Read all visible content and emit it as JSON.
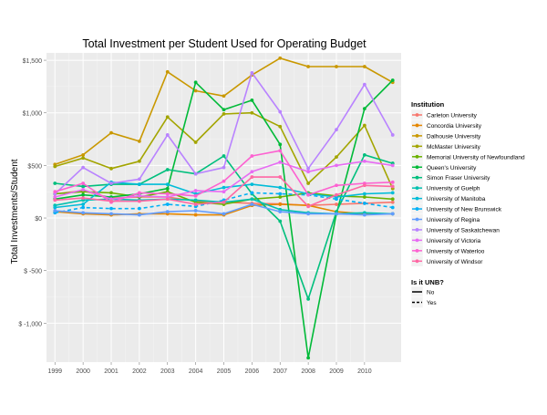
{
  "chart_data": {
    "type": "line",
    "title": "Total Investment per Student Used for Operating Budget",
    "xlabel": "",
    "ylabel": "Total Investments/Student",
    "x": [
      1999,
      2000,
      2001,
      2002,
      2003,
      2004,
      2005,
      2006,
      2007,
      2008,
      2009,
      2010,
      2011
    ],
    "x_tick_labels": [
      "1999",
      "2000",
      "2001",
      "2002",
      "2003",
      "2004",
      "2005",
      "2006",
      "2007",
      "2008",
      "2009",
      "2010"
    ],
    "xlim": [
      1998.7,
      2011.3
    ],
    "ylim": [
      -1370,
      1570
    ],
    "y_ticks": [
      -1000,
      -500,
      0,
      500,
      1000,
      1500
    ],
    "y_tick_labels": [
      "$ -1,000",
      "$ -500",
      "$0",
      "$500",
      "$1,000",
      "$1,500"
    ],
    "grid": true,
    "legend_position": "right",
    "legend_color_title": "Institution",
    "legend_linetype_title": "Is it UNB?",
    "legend_linetype_items": [
      {
        "label": "No",
        "dash": "solid"
      },
      {
        "label": "Yes",
        "dash": "dashed"
      }
    ],
    "series": [
      {
        "name": "Carleton University",
        "color": "#F8766D",
        "unb": false,
        "values": [
          230,
          260,
          190,
          200,
          200,
          160,
          150,
          140,
          135,
          120,
          130,
          140,
          150
        ]
      },
      {
        "name": "Concordia University",
        "color": "#E58700",
        "unb": false,
        "values": [
          60,
          40,
          30,
          40,
          40,
          30,
          30,
          120,
          130,
          120,
          60,
          40,
          40
        ]
      },
      {
        "name": "Dalhousie University",
        "color": "#C99800",
        "unb": false,
        "values": [
          510,
          600,
          810,
          730,
          1390,
          1210,
          1160,
          1360,
          1520,
          1440,
          1440,
          1440,
          1290
        ]
      },
      {
        "name": "McMaster University",
        "color": "#A3A500",
        "unb": false,
        "values": [
          490,
          570,
          470,
          540,
          960,
          720,
          990,
          1000,
          870,
          330,
          580,
          880,
          280
        ]
      },
      {
        "name": "Memorial University of Newfoundland",
        "color": "#6BB100",
        "unb": false,
        "values": [
          230,
          250,
          240,
          200,
          250,
          150,
          130,
          180,
          200,
          240,
          210,
          200,
          180
        ]
      },
      {
        "name": "Queen's University",
        "color": "#00BA38",
        "unb": false,
        "values": [
          180,
          220,
          200,
          230,
          280,
          1290,
          1030,
          1120,
          700,
          -1330,
          40,
          1040,
          1310
        ]
      },
      {
        "name": "Simon Fraser University",
        "color": "#00BF7D",
        "unb": false,
        "values": [
          330,
          300,
          320,
          320,
          460,
          420,
          590,
          230,
          -30,
          -770,
          60,
          600,
          520
        ]
      },
      {
        "name": "University of Guelph",
        "color": "#00C0AF",
        "unb": false,
        "values": [
          120,
          170,
          180,
          170,
          180,
          170,
          150,
          180,
          80,
          50,
          40,
          50,
          40
        ]
      },
      {
        "name": "University of Manitoba",
        "color": "#00BCD8",
        "unb": false,
        "values": [
          100,
          130,
          340,
          320,
          320,
          230,
          290,
          320,
          290,
          230,
          200,
          230,
          240
        ]
      },
      {
        "name": "University of New Brunswick",
        "color": "#00B0F6",
        "unb": true,
        "values": [
          50,
          100,
          90,
          90,
          130,
          110,
          170,
          240,
          230,
          220,
          180,
          140,
          100
        ]
      },
      {
        "name": "University of Regina",
        "color": "#619CFF",
        "unb": false,
        "values": [
          70,
          50,
          40,
          30,
          60,
          70,
          40,
          130,
          60,
          40,
          40,
          30,
          40
        ]
      },
      {
        "name": "University of Saskatchewan",
        "color": "#B983FF",
        "unb": false,
        "values": [
          230,
          480,
          330,
          370,
          790,
          420,
          480,
          1380,
          1010,
          470,
          840,
          1270,
          790
        ]
      },
      {
        "name": "University of Victoria",
        "color": "#E76BF3",
        "unb": false,
        "values": [
          200,
          270,
          180,
          210,
          200,
          260,
          250,
          440,
          530,
          440,
          500,
          540,
          500
        ]
      },
      {
        "name": "University of Waterloo",
        "color": "#FD61D1",
        "unb": false,
        "values": [
          250,
          330,
          150,
          240,
          230,
          210,
          350,
          590,
          640,
          220,
          310,
          330,
          340
        ]
      },
      {
        "name": "University of Windsor",
        "color": "#FF67A4",
        "unb": false,
        "values": [
          170,
          190,
          160,
          160,
          180,
          130,
          150,
          390,
          390,
          110,
          220,
          310,
          300
        ]
      }
    ]
  }
}
